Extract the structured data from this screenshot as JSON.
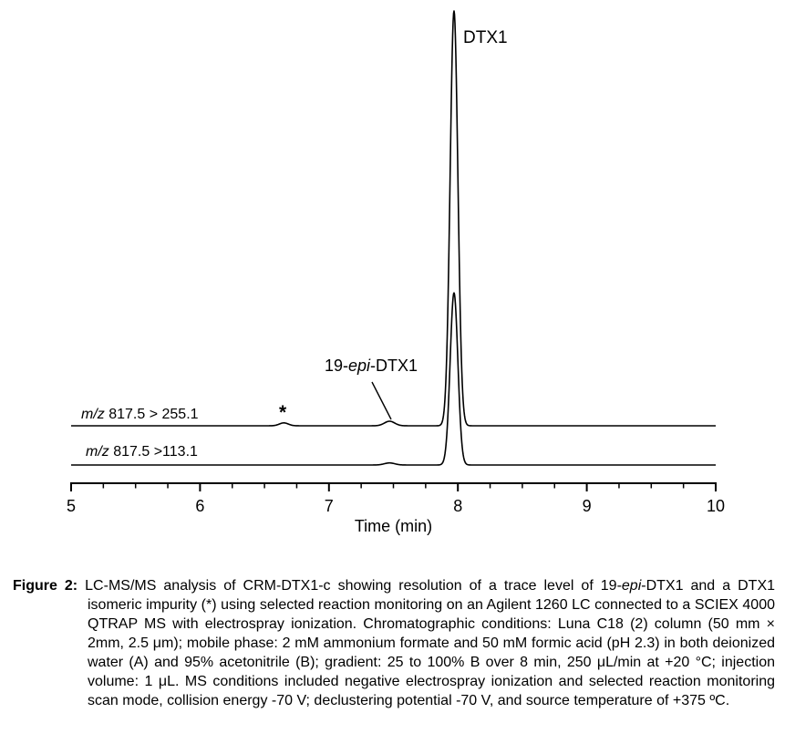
{
  "figure": {
    "annotations": {
      "dtx1_label": "DTX1",
      "epi_label": {
        "t1": "19-",
        "i": "epi",
        "t2": "-DTX1"
      },
      "impurity_marker": "*",
      "trace1_label": {
        "i": "m/z",
        "t": " 817.5 > 255.1"
      },
      "trace2_label": {
        "i": "m/z",
        "t": " 817.5 >113.1"
      }
    },
    "caption": {
      "label": "Figure 2:",
      "t1": "LC-MS/MS analysis of CRM-DTX1-c showing resolution of a trace level of 19-",
      "i1": "epi",
      "t2": "-DTX1 and a DTX1 isomeric impurity (*) using selected reaction monitoring on an Agilent 1260 LC connected to a SCIEX 4000 QTRAP MS with electrospray ionization. Chromatographic conditions: Luna C18 (2) column (50 mm × 2mm, 2.5 μm); mobile phase: 2 mM ammonium formate and 50 mM formic acid (pH 2.3) in both deionized water (A) and 95% acetonitrile (B); gradient: 25 to 100% B over 8 min, 250 μL/min at +20 °C; injection volume: 1 μL. MS conditions included negative electrospray ionization and selected reaction monitoring scan mode, collision energy -70 V; declustering potential -70 V, and source temperature of +375 ºC."
    }
  },
  "chart_data": {
    "type": "line",
    "title": "",
    "xlabel": "Time (min)",
    "ylabel": "",
    "xlim": [
      5,
      10
    ],
    "x_major_ticks": [
      5,
      6,
      7,
      8,
      9,
      10
    ],
    "x_minor_tick_interval": 0.25,
    "y_axis": "none (relative intensity, unscaled, traces vertically offset)",
    "grid": false,
    "legend_position": "labels above each trace at left",
    "series": [
      {
        "name": "m/z 817.5 > 255.1",
        "peaks": [
          {
            "time_min": 6.65,
            "rel_height": 0.7,
            "sigma_min": 0.035,
            "annotation": "*"
          },
          {
            "time_min": 7.47,
            "rel_height": 1.1,
            "sigma_min": 0.04,
            "annotation": "19-epi-DTX1"
          },
          {
            "time_min": 7.97,
            "rel_height": 100,
            "sigma_min": 0.03,
            "annotation": "DTX1"
          }
        ]
      },
      {
        "name": "m/z 817.5 >113.1",
        "peaks": [
          {
            "time_min": 7.47,
            "rel_height": 0.5,
            "sigma_min": 0.04
          },
          {
            "time_min": 7.97,
            "rel_height": 41.5,
            "sigma_min": 0.03
          }
        ]
      }
    ],
    "colors": {
      "trace": "#000000",
      "text": "#000000",
      "background": "#ffffff"
    }
  }
}
